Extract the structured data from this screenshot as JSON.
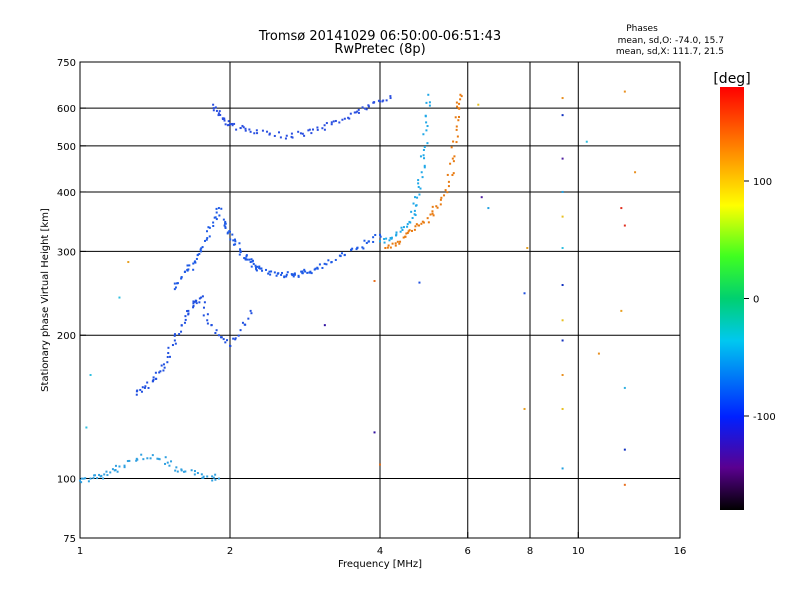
{
  "header": {
    "title_line1": "Tromsø 20141029 06:50:00-06:51:43",
    "title_line2": "RwPretec (8p)",
    "stats_heading": "Phases",
    "stats_o": "mean, sd,O: -74.0, 15.7",
    "stats_x": "mean, sd,X: 111.7, 21.5"
  },
  "chart_data": {
    "type": "scatter",
    "xlabel": "Frequency [MHz]",
    "ylabel": "Stationary phase Virtual Height [km]",
    "x_scale": "log",
    "y_scale": "log",
    "xlim": [
      1,
      16
    ],
    "ylim": [
      75,
      750
    ],
    "x_ticks": [
      1,
      2,
      4,
      6,
      8,
      10,
      16
    ],
    "x_tick_labels": [
      "1",
      "2",
      "4",
      "6",
      "8",
      "10",
      "16"
    ],
    "y_ticks": [
      75,
      100,
      200,
      300,
      400,
      500,
      600,
      750
    ],
    "y_tick_labels": [
      "75",
      "100",
      "200",
      "300",
      "400",
      "500",
      "600",
      "750"
    ],
    "x_gridlines": [
      2,
      4,
      6,
      8,
      10
    ],
    "y_gridlines": [
      100,
      200,
      300,
      400,
      500,
      600
    ],
    "grid": true,
    "colorbar": {
      "label": "[deg]",
      "range": [
        -180,
        180
      ],
      "ticks": [
        100,
        0,
        -100
      ],
      "tick_labels": [
        "100",
        "0",
        "-100"
      ],
      "colormap": "rainbow"
    },
    "series": [
      {
        "color": "#1e5ae6",
        "x": [
          1.55,
          1.6,
          1.65,
          1.7,
          1.75,
          1.8,
          1.85,
          1.9,
          1.95,
          2.0,
          2.05,
          2.1,
          2.15,
          2.2,
          2.25,
          2.3,
          2.4,
          2.5,
          2.6,
          2.7,
          2.8,
          2.9,
          3.0,
          3.2,
          3.4,
          3.6,
          3.8,
          4.0
        ],
        "y": [
          250,
          265,
          275,
          285,
          300,
          320,
          345,
          370,
          340,
          330,
          315,
          300,
          290,
          285,
          280,
          276,
          272,
          270,
          268,
          268,
          270,
          272,
          276,
          285,
          295,
          305,
          315,
          325
        ]
      },
      {
        "color": "#2a4fe0",
        "x": [
          1.85,
          1.9,
          1.95,
          2.0,
          2.1,
          2.2,
          2.4,
          2.6,
          2.8,
          3.0,
          3.2,
          3.4,
          3.6,
          3.8,
          4.0,
          4.2
        ],
        "y": [
          610,
          585,
          565,
          555,
          545,
          535,
          528,
          525,
          530,
          540,
          555,
          570,
          590,
          605,
          620,
          630
        ]
      },
      {
        "color": "#20a8e8",
        "x": [
          4.0,
          4.2,
          4.4,
          4.6,
          4.7,
          4.8,
          4.85,
          4.9,
          4.95,
          5.0
        ],
        "y": [
          315,
          320,
          330,
          345,
          365,
          395,
          440,
          490,
          560,
          640
        ]
      },
      {
        "color": "#e87a10",
        "x": [
          4.1,
          4.3,
          4.5,
          4.7,
          4.9,
          5.1,
          5.3,
          5.5,
          5.6,
          5.7,
          5.75,
          5.8
        ],
        "y": [
          305,
          312,
          322,
          333,
          345,
          360,
          385,
          420,
          470,
          540,
          600,
          640
        ]
      },
      {
        "color": "#2050e0",
        "x": [
          1.3,
          1.35,
          1.4,
          1.45,
          1.5,
          1.55,
          1.6,
          1.65,
          1.7,
          1.75,
          1.8,
          1.9,
          2.0,
          2.1,
          2.2
        ],
        "y": [
          150,
          155,
          160,
          168,
          180,
          195,
          210,
          225,
          235,
          240,
          215,
          200,
          190,
          205,
          225
        ]
      },
      {
        "color": "#30a0e0",
        "x": [
          1.0,
          1.05,
          1.1,
          1.15,
          1.2,
          1.3,
          1.4,
          1.5,
          1.6,
          1.7,
          1.8,
          1.9
        ],
        "y": [
          99,
          100,
          101,
          103,
          106,
          110,
          112,
          108,
          104,
          102,
          101,
          100
        ]
      }
    ],
    "scattered_points": [
      {
        "x": 9.3,
        "y": 630,
        "color": "#e89020"
      },
      {
        "x": 9.3,
        "y": 580,
        "color": "#1030c0"
      },
      {
        "x": 9.3,
        "y": 470,
        "color": "#5020a0"
      },
      {
        "x": 9.3,
        "y": 400,
        "color": "#20a0e0"
      },
      {
        "x": 9.3,
        "y": 355,
        "color": "#e8c020"
      },
      {
        "x": 9.3,
        "y": 305,
        "color": "#30c0e0"
      },
      {
        "x": 9.3,
        "y": 255,
        "color": "#1030c0"
      },
      {
        "x": 9.3,
        "y": 215,
        "color": "#e8c020"
      },
      {
        "x": 9.3,
        "y": 195,
        "color": "#1030c0"
      },
      {
        "x": 9.3,
        "y": 165,
        "color": "#e89020"
      },
      {
        "x": 9.3,
        "y": 140,
        "color": "#e8c020"
      },
      {
        "x": 9.3,
        "y": 105,
        "color": "#20a0e0"
      },
      {
        "x": 10.4,
        "y": 510,
        "color": "#30c0e0"
      },
      {
        "x": 12.4,
        "y": 650,
        "color": "#e89020"
      },
      {
        "x": 12.2,
        "y": 370,
        "color": "#e03020"
      },
      {
        "x": 12.4,
        "y": 340,
        "color": "#e03020"
      },
      {
        "x": 12.2,
        "y": 225,
        "color": "#e8a020"
      },
      {
        "x": 12.4,
        "y": 155,
        "color": "#30b0e0"
      },
      {
        "x": 12.4,
        "y": 115,
        "color": "#1030c0"
      },
      {
        "x": 12.4,
        "y": 97,
        "color": "#e87020"
      },
      {
        "x": 13.0,
        "y": 440,
        "color": "#e89020"
      },
      {
        "x": 11.0,
        "y": 183,
        "color": "#e89020"
      },
      {
        "x": 7.9,
        "y": 305,
        "color": "#e8a020"
      },
      {
        "x": 7.8,
        "y": 245,
        "color": "#2050e0"
      },
      {
        "x": 7.8,
        "y": 140,
        "color": "#e8a020"
      },
      {
        "x": 6.3,
        "y": 610,
        "color": "#e8c020"
      },
      {
        "x": 6.6,
        "y": 370,
        "color": "#20a0e0"
      },
      {
        "x": 6.4,
        "y": 390,
        "color": "#5020a0"
      },
      {
        "x": 3.1,
        "y": 210,
        "color": "#3010a0"
      },
      {
        "x": 3.9,
        "y": 125,
        "color": "#3010a0"
      },
      {
        "x": 4.0,
        "y": 107,
        "color": "#e07020"
      },
      {
        "x": 3.9,
        "y": 260,
        "color": "#e87020"
      },
      {
        "x": 4.8,
        "y": 258,
        "color": "#2050e0"
      },
      {
        "x": 1.05,
        "y": 165,
        "color": "#30c0e0"
      },
      {
        "x": 1.03,
        "y": 128,
        "color": "#30c0e0"
      },
      {
        "x": 1.25,
        "y": 285,
        "color": "#e8a020"
      },
      {
        "x": 1.2,
        "y": 240,
        "color": "#30c0e0"
      }
    ]
  }
}
